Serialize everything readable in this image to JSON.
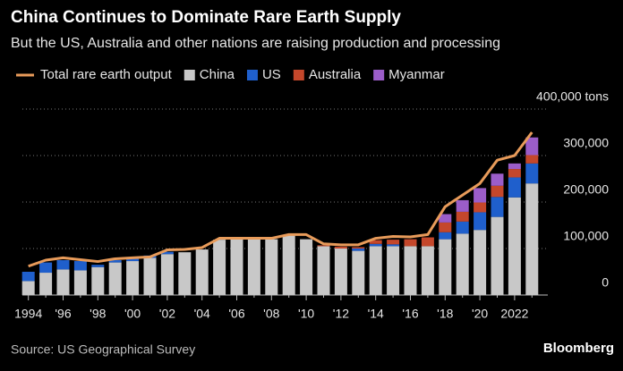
{
  "chart_data": {
    "type": "bar",
    "stacked": true,
    "title": "China Continues to Dominate Rare Earth Supply",
    "subtitle": "But the US, Australia and other nations are raising production and processing",
    "source": "Source: US Geographical Survey",
    "brand": "Bloomberg",
    "categories": [
      "1994",
      null,
      "'96",
      null,
      "'98",
      null,
      "'00",
      null,
      "'02",
      null,
      "'04",
      null,
      "'06",
      null,
      "'08",
      null,
      "'10",
      null,
      "'12",
      null,
      "'14",
      null,
      "'16",
      null,
      "'18",
      null,
      "'20",
      null,
      "2022",
      null
    ],
    "series": [
      {
        "name": "China",
        "color": "#c8c8c8",
        "values": [
          30000,
          48000,
          55000,
          53000,
          60000,
          70000,
          73000,
          80000,
          88000,
          92000,
          98000,
          119000,
          120000,
          120000,
          120000,
          129000,
          120000,
          105000,
          100000,
          95000,
          105000,
          105000,
          105000,
          105000,
          120000,
          132000,
          140000,
          168000,
          210000,
          240000
        ]
      },
      {
        "name": "US",
        "color": "#1f5fcc",
        "values": [
          20000,
          22000,
          20000,
          20000,
          5000,
          5000,
          5000,
          5000,
          5000,
          0,
          0,
          0,
          0,
          0,
          0,
          0,
          0,
          0,
          0,
          5000,
          5000,
          4000,
          0,
          0,
          15000,
          26000,
          38000,
          43000,
          43000,
          43000
        ]
      },
      {
        "name": "Australia",
        "color": "#c4472b",
        "values": [
          0,
          0,
          0,
          0,
          0,
          0,
          0,
          0,
          0,
          0,
          0,
          0,
          0,
          0,
          0,
          0,
          0,
          2000,
          4000,
          3000,
          8000,
          10000,
          15000,
          19000,
          21000,
          21000,
          21000,
          24000,
          18000,
          18000
        ]
      },
      {
        "name": "Myanmar",
        "color": "#9b5dc9",
        "values": [
          0,
          0,
          0,
          0,
          0,
          0,
          0,
          0,
          0,
          0,
          0,
          0,
          0,
          0,
          0,
          0,
          0,
          0,
          0,
          0,
          0,
          0,
          0,
          0,
          18000,
          25000,
          31000,
          26000,
          12000,
          38000
        ]
      }
    ],
    "line_series": {
      "name": "Total rare earth output",
      "color": "#e89b5a",
      "values": [
        62000,
        75000,
        80000,
        76000,
        72000,
        78000,
        80000,
        82000,
        97000,
        98000,
        102000,
        122000,
        122000,
        122000,
        122000,
        130000,
        130000,
        110000,
        108000,
        108000,
        122000,
        126000,
        125000,
        130000,
        190000,
        215000,
        240000,
        290000,
        300000,
        350000
      ]
    },
    "ylim": [
      0,
      400000
    ],
    "yticks": [
      {
        "value": 0,
        "label": "0"
      },
      {
        "value": 100000,
        "label": "100,000"
      },
      {
        "value": 200000,
        "label": "200,000"
      },
      {
        "value": 300000,
        "label": "300,000"
      },
      {
        "value": 400000,
        "label": "400,000 tons"
      }
    ],
    "grid": true
  }
}
